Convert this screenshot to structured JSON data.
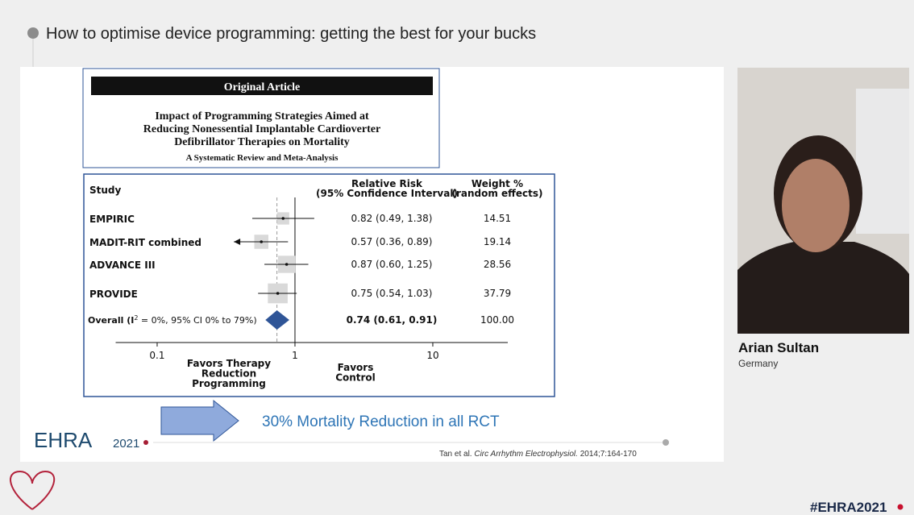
{
  "header": {
    "title": "How to optimise device programming: getting the best for your bucks"
  },
  "article": {
    "label": "Original Article",
    "title_lines": [
      "Impact of Programming Strategies Aimed at",
      "Reducing Nonessential Implantable Cardioverter",
      "Defibrillator Therapies on Mortality"
    ],
    "subtitle": "A Systematic Review and Meta-Analysis"
  },
  "chart_data": {
    "type": "forest",
    "column_study": "Study",
    "column_rr": [
      "Relative Risk",
      "(95% Confidence Interval)"
    ],
    "column_weight": [
      "Weight %",
      "(random effects)"
    ],
    "categories": [
      "EMPIRIC",
      "MADIT-RIT combined",
      "ADVANCE III",
      "PROVIDE"
    ],
    "values": [
      0.82,
      0.57,
      0.87,
      0.75
    ],
    "ci_low": [
      0.49,
      0.36,
      0.6,
      0.54
    ],
    "ci_high": [
      1.38,
      0.89,
      1.25,
      1.03
    ],
    "value_labels": [
      "0.82 (0.49, 1.38)",
      "0.57 (0.36, 0.89)",
      "0.87 (0.60, 1.25)",
      "0.75 (0.54, 1.03)"
    ],
    "weights": [
      14.51,
      19.14,
      28.56,
      37.79
    ],
    "overall": {
      "label_parts": [
        "Overall (I",
        "2",
        " = 0%, 95% CI 0% to 79%)"
      ],
      "value": 0.74,
      "ci_low": 0.61,
      "ci_high": 0.91,
      "value_label": "0.74 (0.61, 0.91)",
      "weight": {
        "value": 100,
        "label": "100.00"
      },
      "color": "#2f5597"
    },
    "xscale": "log",
    "xlim": [
      0.05,
      35
    ],
    "xticks": [
      0.1,
      1,
      10
    ],
    "favors_left": [
      "Favors Therapy",
      "Reduction",
      "Programming"
    ],
    "favors_right": [
      "Favors",
      "Control"
    ]
  },
  "slide": {
    "caption": "30% Mortality Reduction in all RCT",
    "logo": "EHRA",
    "logo_year": "2021",
    "citation_parts": [
      "Tan et al. ",
      "Circ Arrhythm Electrophysiol.",
      " 2014;7:164-170"
    ]
  },
  "speaker": {
    "name": "Arian Sultan",
    "country": "Germany"
  },
  "footer": {
    "hashtag": "#EHRA2021"
  }
}
